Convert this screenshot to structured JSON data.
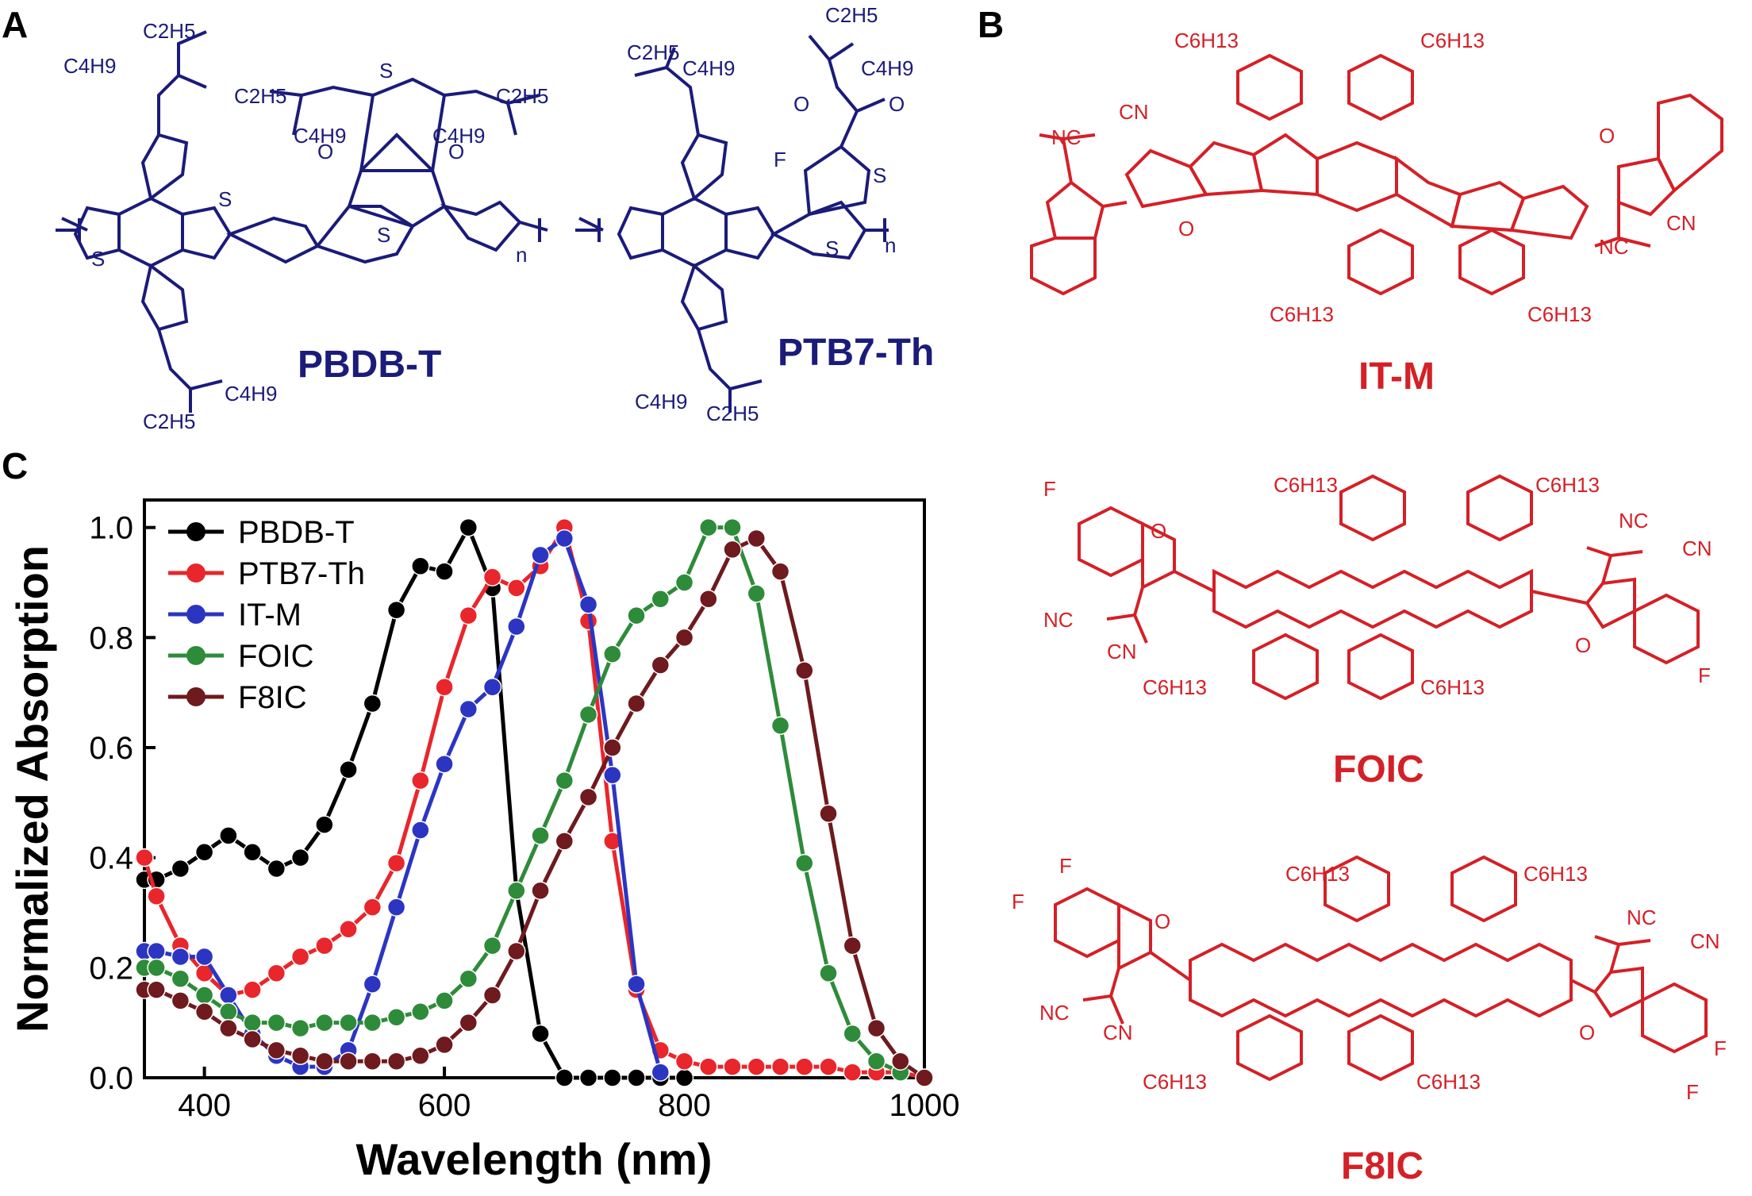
{
  "panels": {
    "a": "A",
    "b": "B",
    "c": "C"
  },
  "structures": {
    "pbdbt_name": "PBDB-T",
    "ptb7th_name": "PTB7-Th",
    "itm_name": "IT-M",
    "foic_name": "FOIC",
    "f8ic_name": "F8IC",
    "repeat_n": "n",
    "c2h5": "C2H5",
    "c4h9": "C4H9",
    "c6h13": "C6H13",
    "s": "S",
    "o": "O",
    "f": "F",
    "nc": "NC",
    "cn": "CN",
    "colors": {
      "donor": "#1b1b7a",
      "acceptor": "#d42027"
    }
  },
  "chart_data": {
    "type": "line",
    "xlabel": "Wavelength (nm)",
    "ylabel": "Normalized Absorption",
    "xlim": [
      350,
      1000
    ],
    "ylim": [
      0.0,
      1.05
    ],
    "xticks": [
      400,
      600,
      800,
      1000
    ],
    "yticks": [
      0.0,
      0.2,
      0.4,
      0.6,
      0.8,
      1.0
    ],
    "ytick_labels": [
      "0.0",
      "0.2",
      "0.4",
      "0.6",
      "0.8",
      "1.0"
    ],
    "legend_position": "top-left",
    "grid": false,
    "series": [
      {
        "name": "PBDB-T",
        "color": "#000000",
        "x": [
          350,
          360,
          380,
          400,
          420,
          440,
          460,
          480,
          500,
          520,
          540,
          560,
          580,
          600,
          620,
          640,
          660,
          680,
          700,
          720,
          740,
          760,
          780,
          800
        ],
        "y": [
          0.36,
          0.36,
          0.38,
          0.41,
          0.44,
          0.41,
          0.38,
          0.4,
          0.46,
          0.56,
          0.68,
          0.85,
          0.93,
          0.92,
          1.0,
          0.89,
          0.34,
          0.08,
          0.0,
          0.0,
          0.0,
          0.0,
          0.0,
          0.0
        ]
      },
      {
        "name": "PTB7-Th",
        "color": "#e8262b",
        "x": [
          350,
          360,
          380,
          400,
          420,
          440,
          460,
          480,
          500,
          520,
          540,
          560,
          580,
          600,
          620,
          640,
          660,
          680,
          700,
          720,
          740,
          760,
          780,
          800,
          820,
          840,
          860,
          880,
          900,
          920,
          940,
          960,
          980,
          1000
        ],
        "y": [
          0.4,
          0.33,
          0.24,
          0.19,
          0.15,
          0.16,
          0.19,
          0.22,
          0.24,
          0.27,
          0.31,
          0.39,
          0.54,
          0.71,
          0.84,
          0.91,
          0.89,
          0.93,
          1.0,
          0.83,
          0.43,
          0.16,
          0.05,
          0.03,
          0.02,
          0.02,
          0.02,
          0.02,
          0.02,
          0.02,
          0.01,
          0.01,
          0.01,
          0.0
        ]
      },
      {
        "name": "IT-M",
        "color": "#2c35c2",
        "x": [
          350,
          360,
          380,
          400,
          420,
          440,
          460,
          480,
          500,
          520,
          540,
          560,
          580,
          600,
          620,
          640,
          660,
          680,
          700,
          720,
          740,
          760,
          780
        ],
        "y": [
          0.23,
          0.23,
          0.22,
          0.22,
          0.15,
          0.08,
          0.04,
          0.02,
          0.02,
          0.05,
          0.17,
          0.31,
          0.45,
          0.57,
          0.67,
          0.71,
          0.82,
          0.95,
          0.98,
          0.86,
          0.55,
          0.17,
          0.01
        ]
      },
      {
        "name": "FOIC",
        "color": "#2e8b3a",
        "x": [
          350,
          360,
          380,
          400,
          420,
          440,
          460,
          480,
          500,
          520,
          540,
          560,
          580,
          600,
          620,
          640,
          660,
          680,
          700,
          720,
          740,
          760,
          780,
          800,
          820,
          840,
          860,
          880,
          900,
          920,
          940,
          960,
          980
        ],
        "y": [
          0.2,
          0.2,
          0.18,
          0.15,
          0.12,
          0.1,
          0.1,
          0.09,
          0.1,
          0.1,
          0.1,
          0.11,
          0.12,
          0.14,
          0.18,
          0.24,
          0.34,
          0.44,
          0.54,
          0.66,
          0.77,
          0.84,
          0.87,
          0.9,
          1.0,
          1.0,
          0.88,
          0.64,
          0.39,
          0.19,
          0.08,
          0.03,
          0.01
        ]
      },
      {
        "name": "F8IC",
        "color": "#6e1a1e",
        "x": [
          350,
          360,
          380,
          400,
          420,
          440,
          460,
          480,
          500,
          520,
          540,
          560,
          580,
          600,
          620,
          640,
          660,
          680,
          700,
          720,
          740,
          760,
          780,
          800,
          820,
          840,
          860,
          880,
          900,
          920,
          940,
          960,
          980,
          1000
        ],
        "y": [
          0.16,
          0.16,
          0.14,
          0.12,
          0.09,
          0.07,
          0.05,
          0.04,
          0.03,
          0.03,
          0.03,
          0.03,
          0.04,
          0.06,
          0.1,
          0.15,
          0.23,
          0.34,
          0.43,
          0.51,
          0.6,
          0.68,
          0.75,
          0.8,
          0.87,
          0.96,
          0.98,
          0.92,
          0.74,
          0.48,
          0.24,
          0.09,
          0.03,
          0.0
        ]
      }
    ]
  }
}
